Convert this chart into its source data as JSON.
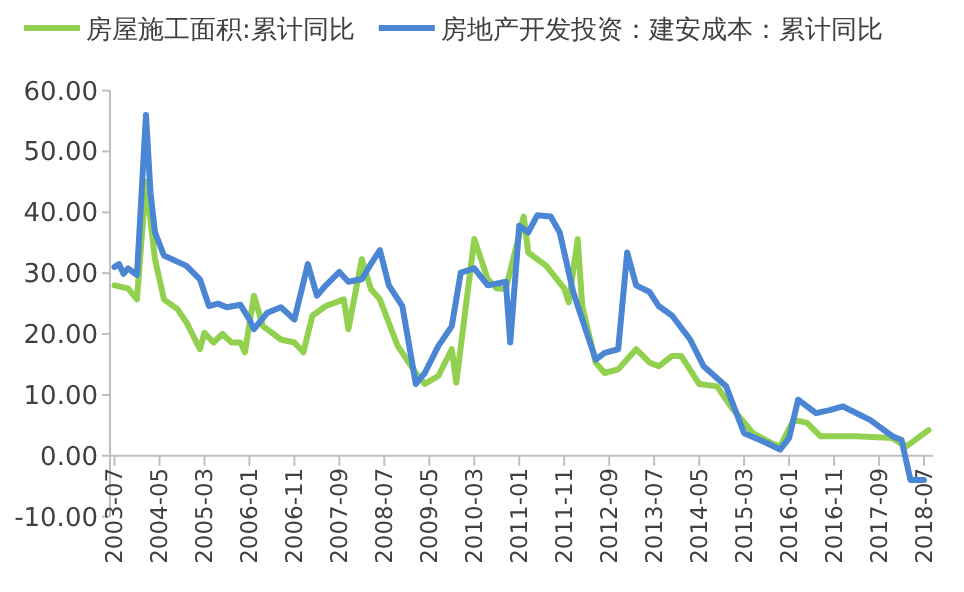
{
  "chart_data": {
    "type": "line",
    "ylim": [
      -10,
      60
    ],
    "yticks": [
      {
        "value": -10,
        "label": "-10.00"
      },
      {
        "value": 0,
        "label": "0.00"
      },
      {
        "value": 10,
        "label": "10.00"
      },
      {
        "value": 20,
        "label": "20.00"
      },
      {
        "value": 30,
        "label": "30.00"
      },
      {
        "value": 40,
        "label": "40.00"
      },
      {
        "value": 50,
        "label": "50.00"
      },
      {
        "value": 60,
        "label": "60.00"
      }
    ],
    "xlim": [
      "2003-06",
      "2018-09"
    ],
    "xticks": [
      "2003-07",
      "2004-05",
      "2005-03",
      "2006-01",
      "2006-11",
      "2007-09",
      "2008-07",
      "2009-05",
      "2010-03",
      "2011-01",
      "2011-11",
      "2012-09",
      "2013-07",
      "2014-05",
      "2015-03",
      "2016-01",
      "2016-11",
      "2017-09",
      "2018-07"
    ],
    "grid": false,
    "legend": "top",
    "marker": "none",
    "line_style": "solid",
    "series": [
      {
        "name": "房屋施工面积:累计同比",
        "color": "#92d050",
        "x": [
          "2003-07",
          "2003-10",
          "2003-12",
          "2004-02",
          "2004-04",
          "2004-06",
          "2004-09",
          "2004-11",
          "2005-02",
          "2005-03",
          "2005-05",
          "2005-07",
          "2005-09",
          "2005-11",
          "2005-12",
          "2006-02",
          "2006-04",
          "2006-08",
          "2006-11",
          "2007-01",
          "2007-03",
          "2007-06",
          "2007-10",
          "2007-11",
          "2008-02",
          "2008-04",
          "2008-06",
          "2008-10",
          "2009-02",
          "2009-04",
          "2009-07",
          "2009-10",
          "2009-11",
          "2010-03",
          "2010-06",
          "2010-08",
          "2010-10",
          "2011-02",
          "2011-03",
          "2011-07",
          "2011-11",
          "2011-12",
          "2012-02",
          "2012-03",
          "2012-06",
          "2012-08",
          "2012-11",
          "2013-03",
          "2013-06",
          "2013-08",
          "2013-11",
          "2014-01",
          "2014-05",
          "2014-09",
          "2014-12",
          "2015-05",
          "2015-09",
          "2015-11",
          "2016-02",
          "2016-05",
          "2016-08",
          "2017-04",
          "2017-12",
          "2018-03",
          "2018-08"
        ],
        "values": [
          28,
          27.5,
          25.7,
          45,
          32.3,
          25.7,
          24.1,
          21.9,
          17.5,
          20.2,
          18.6,
          20,
          18.6,
          18.6,
          17,
          26.3,
          21.3,
          19.1,
          18.6,
          17,
          23,
          24.6,
          25.7,
          20.8,
          32.3,
          27.4,
          25.7,
          18,
          13.6,
          11.8,
          13.1,
          17.5,
          12,
          35.6,
          29,
          27.5,
          27.4,
          39.3,
          33.4,
          31.2,
          27.5,
          25.2,
          35.6,
          24.6,
          15.3,
          13.6,
          14.2,
          17.5,
          15.3,
          14.7,
          16.4,
          16.4,
          11.8,
          11.4,
          8.1,
          3.7,
          2.1,
          1.5,
          5.9,
          5.4,
          3.2,
          3.2,
          2.9,
          1.5,
          4.2
        ]
      },
      {
        "name": "房地产开发投资：建安成本：累计同比",
        "color": "#4a86d4",
        "x": [
          "2003-07",
          "2003-08",
          "2003-09",
          "2003-10",
          "2003-12",
          "2004-02",
          "2004-03",
          "2004-04",
          "2004-06",
          "2004-11",
          "2005-02",
          "2005-04",
          "2005-06",
          "2005-08",
          "2005-11",
          "2006-01",
          "2006-02",
          "2006-05",
          "2006-08",
          "2006-11",
          "2007-02",
          "2007-04",
          "2007-06",
          "2007-09",
          "2007-11",
          "2008-02",
          "2008-04",
          "2008-06",
          "2008-08",
          "2008-11",
          "2009-02",
          "2009-04",
          "2009-07",
          "2009-10",
          "2009-12",
          "2010-03",
          "2010-06",
          "2010-10",
          "2010-11",
          "2011-01",
          "2011-03",
          "2011-05",
          "2011-08",
          "2011-10",
          "2012-01",
          "2012-03",
          "2012-06",
          "2012-08",
          "2012-11",
          "2013-01",
          "2013-03",
          "2013-06",
          "2013-08",
          "2013-11",
          "2014-03",
          "2014-06",
          "2014-11",
          "2015-03",
          "2015-08",
          "2015-11",
          "2016-01",
          "2016-03",
          "2016-07",
          "2016-10",
          "2017-01",
          "2017-07",
          "2017-12",
          "2018-02",
          "2018-04",
          "2018-07"
        ],
        "values": [
          31,
          31.5,
          29.9,
          30.8,
          29.7,
          56,
          43.3,
          36.7,
          32.9,
          31.2,
          29,
          24.6,
          25,
          24.4,
          24.8,
          22.4,
          20.8,
          23.5,
          24.4,
          22.4,
          31.5,
          26.3,
          28,
          30.2,
          28.6,
          29,
          31.5,
          33.8,
          28,
          24.6,
          11.8,
          13.6,
          18,
          21.3,
          30.1,
          30.8,
          28,
          28.6,
          18.6,
          37.8,
          36.7,
          39.5,
          39.3,
          36.7,
          26.9,
          22.4,
          15.8,
          16.9,
          17.5,
          33.4,
          28,
          26.9,
          24.6,
          23,
          19.1,
          14.7,
          11.4,
          3.7,
          2.1,
          1,
          2.9,
          9.2,
          7,
          7.5,
          8.1,
          5.9,
          3.2,
          2.6,
          -4,
          -4
        ]
      }
    ]
  }
}
